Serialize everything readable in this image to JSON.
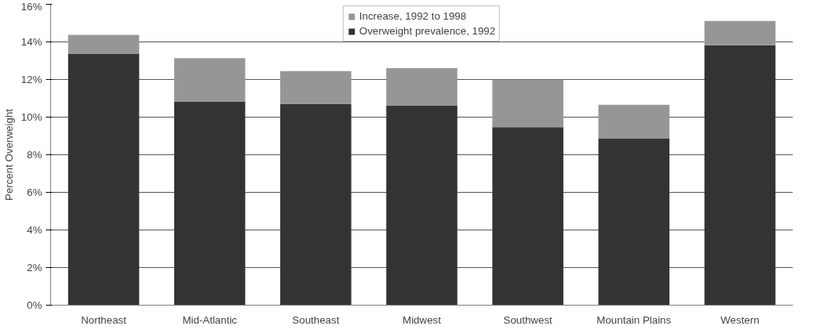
{
  "chart_data": {
    "type": "bar",
    "stacked": true,
    "ylabel": "Percent Overweight",
    "categories": [
      "Northeast",
      "Mid-Atlantic",
      "Southeast",
      "Midwest",
      "Southwest",
      "Mountain Plains",
      "Western"
    ],
    "series": [
      {
        "name": "Overweight prevalence, 1992",
        "color": "#333333",
        "values": [
          13.37,
          10.83,
          10.69,
          10.63,
          9.47,
          8.87,
          13.82
        ]
      },
      {
        "name": "Increase, 1992 to 1998",
        "color": "#969696",
        "values": [
          1.01,
          2.31,
          1.76,
          1.97,
          2.52,
          1.79,
          1.29
        ]
      }
    ],
    "ylim": [
      0,
      16
    ],
    "yticks": [
      {
        "value": 0,
        "label": "0%"
      },
      {
        "value": 2,
        "label": "2%"
      },
      {
        "value": 4,
        "label": "4%"
      },
      {
        "value": 6,
        "label": "6%"
      },
      {
        "value": 8,
        "label": "8%"
      },
      {
        "value": 10,
        "label": "10%"
      },
      {
        "value": 12,
        "label": "12%"
      },
      {
        "value": 14,
        "label": "14%"
      },
      {
        "value": 16,
        "label": "16%"
      }
    ],
    "grid": "y",
    "legend": "top"
  }
}
